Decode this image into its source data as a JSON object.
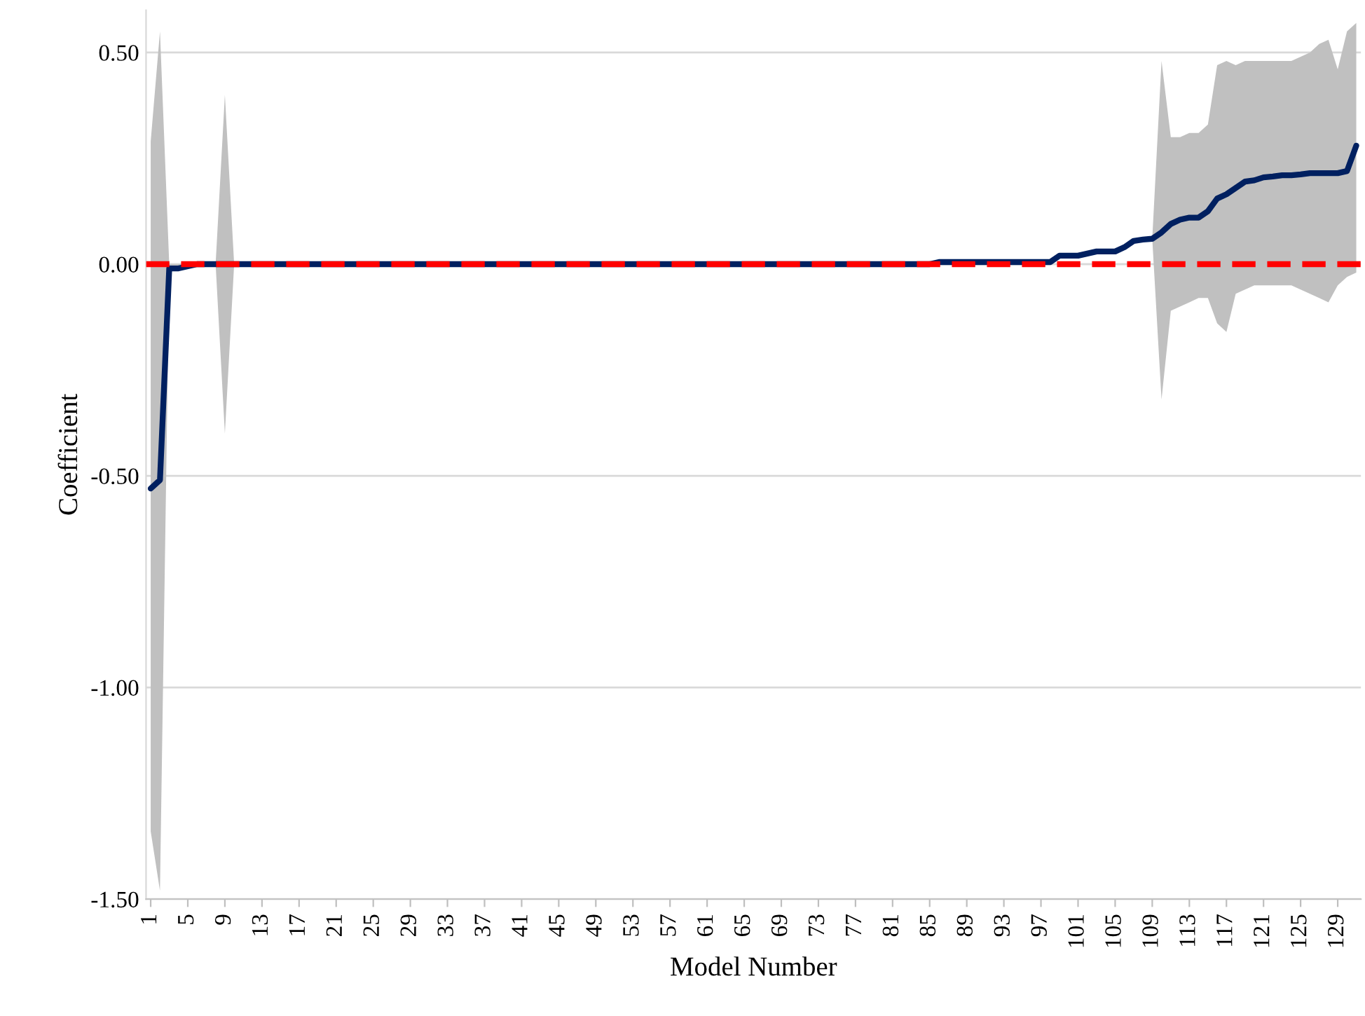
{
  "chart_data": {
    "type": "line",
    "xlabel": "Model Number",
    "ylabel": "Coefficient",
    "categories": [
      "1",
      null,
      null,
      null,
      "5",
      null,
      null,
      null,
      "9",
      null,
      null,
      null,
      "13",
      null,
      null,
      null,
      "17",
      null,
      null,
      null,
      "21",
      null,
      null,
      null,
      "25",
      null,
      null,
      null,
      "29",
      null,
      null,
      null,
      "33",
      null,
      null,
      null,
      "37",
      null,
      null,
      null,
      "41",
      null,
      null,
      null,
      "45",
      null,
      null,
      null,
      "49",
      null,
      null,
      null,
      "53",
      null,
      null,
      null,
      "57",
      null,
      null,
      null,
      "61",
      null,
      null,
      null,
      "65",
      null,
      null,
      null,
      "69",
      null,
      null,
      null,
      "73",
      null,
      null,
      null,
      "77",
      null,
      null,
      null,
      "81",
      null,
      null,
      null,
      "85",
      null,
      null,
      null,
      "89",
      null,
      null,
      null,
      "93",
      null,
      null,
      null,
      "97",
      null,
      null,
      null,
      "101",
      null,
      null,
      null,
      "105",
      null,
      null,
      null,
      "109",
      null,
      null,
      null,
      "113",
      null,
      null,
      null,
      "117",
      null,
      null,
      null,
      "121",
      null,
      null,
      null,
      "125",
      null,
      null,
      null,
      "129",
      null,
      null
    ],
    "series": [
      {
        "color": "#002060",
        "values": [
          -0.53,
          -0.51,
          -0.01,
          -0.01,
          -0.005,
          0,
          0,
          0,
          0,
          0,
          0,
          0,
          0,
          0,
          0,
          0,
          0,
          0,
          0,
          0,
          0,
          0,
          0,
          0,
          0,
          0,
          0,
          0,
          0,
          0,
          0,
          0,
          0,
          0,
          0,
          0,
          0,
          0,
          0,
          0,
          0,
          0,
          0,
          0,
          0,
          0,
          0,
          0,
          0,
          0,
          0,
          0,
          0,
          0,
          0,
          0,
          0,
          0,
          0,
          0,
          0,
          0,
          0,
          0,
          0,
          0,
          0,
          0,
          0,
          0,
          0,
          0,
          0,
          0,
          0,
          0,
          0,
          0,
          0,
          0,
          0,
          0,
          0,
          0,
          0,
          0.005,
          0.005,
          0.005,
          0.005,
          0.005,
          0.005,
          0.005,
          0.005,
          0.005,
          0.005,
          0.005,
          0.005,
          0.005,
          0.02,
          0.02,
          0.02,
          0.025,
          0.03,
          0.03,
          0.03,
          0.04,
          0.055,
          0.058,
          0.06,
          0.075,
          0.095,
          0.105,
          0.11,
          0.11,
          0.125,
          0.155,
          0.165,
          0.18,
          0.195,
          0.198,
          0.205,
          0.207,
          0.21,
          0.21,
          0.212,
          0.215,
          0.215,
          0.215,
          0.215,
          0.22,
          0.28
        ],
        "lower": [
          -1.34,
          -1.48,
          -0.02,
          -0.01,
          -0.005,
          0,
          0,
          0,
          -0.4,
          0,
          0,
          0,
          0,
          0,
          0,
          0,
          0,
          0,
          0,
          0,
          0,
          0,
          0,
          0,
          0,
          0,
          0,
          0,
          0,
          0,
          0,
          0,
          0,
          0,
          0,
          0,
          0,
          0,
          0,
          0,
          0,
          0,
          0,
          0,
          0,
          0,
          0,
          0,
          0,
          0,
          0,
          0,
          0,
          0,
          0,
          0,
          0,
          0,
          0,
          0,
          0,
          0,
          0,
          0,
          0,
          0,
          0,
          0,
          0,
          0,
          0,
          0,
          0,
          0,
          0,
          0,
          0,
          0,
          0,
          0,
          0,
          0,
          0,
          0,
          0,
          0.005,
          0.005,
          0.005,
          0.005,
          0.005,
          0.005,
          0.005,
          0.005,
          0.005,
          0.005,
          0.005,
          0.005,
          0.005,
          0.02,
          0.02,
          0.02,
          0.025,
          0.03,
          0.03,
          0.03,
          0.04,
          0.055,
          0.058,
          0.06,
          -0.32,
          -0.11,
          -0.1,
          -0.09,
          -0.08,
          -0.08,
          -0.14,
          -0.16,
          -0.07,
          -0.06,
          -0.05,
          -0.05,
          -0.05,
          -0.05,
          -0.05,
          -0.06,
          -0.07,
          -0.08,
          -0.09,
          -0.05,
          -0.03,
          -0.02
        ],
        "upper": [
          0.29,
          0.55,
          0,
          0,
          0,
          0,
          0,
          0,
          0.4,
          0,
          0,
          0,
          0,
          0,
          0,
          0,
          0,
          0,
          0,
          0,
          0,
          0,
          0,
          0,
          0,
          0,
          0,
          0,
          0,
          0,
          0,
          0,
          0,
          0,
          0,
          0,
          0,
          0,
          0,
          0,
          0,
          0,
          0,
          0,
          0,
          0,
          0,
          0,
          0,
          0,
          0,
          0,
          0,
          0,
          0,
          0,
          0,
          0,
          0,
          0,
          0,
          0,
          0,
          0,
          0,
          0,
          0,
          0,
          0,
          0,
          0,
          0,
          0,
          0,
          0,
          0,
          0,
          0,
          0,
          0,
          0,
          0,
          0,
          0,
          0,
          0.005,
          0.005,
          0.005,
          0.005,
          0.005,
          0.005,
          0.005,
          0.005,
          0.005,
          0.005,
          0.005,
          0.005,
          0.005,
          0.02,
          0.02,
          0.02,
          0.025,
          0.03,
          0.03,
          0.03,
          0.04,
          0.055,
          0.058,
          0.06,
          0.48,
          0.3,
          0.3,
          0.31,
          0.31,
          0.33,
          0.47,
          0.48,
          0.47,
          0.48,
          0.48,
          0.48,
          0.48,
          0.48,
          0.48,
          0.49,
          0.5,
          0.52,
          0.53,
          0.46,
          0.55,
          0.57
        ]
      }
    ],
    "ref_lines": [
      {
        "axis": "y",
        "value": 0,
        "color": "#ff0000",
        "line_style": "dashed"
      }
    ],
    "ylim": [
      -1.5,
      0.6
    ],
    "yticks": [
      {
        "value": -1.5,
        "label": "-1.50"
      },
      {
        "value": -1.0,
        "label": "-1.00"
      },
      {
        "value": -0.5,
        "label": "-0.50"
      },
      {
        "value": 0,
        "label": "0.00"
      },
      {
        "value": 0.5,
        "label": "0.50"
      }
    ],
    "grid": "y",
    "legend": false
  }
}
